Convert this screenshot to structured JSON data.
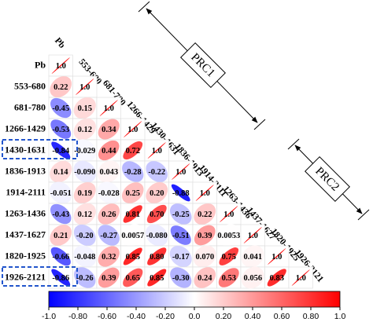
{
  "chart_data": {
    "type": "correlogram",
    "variables": [
      "Pb",
      "553-680",
      "681-780",
      "1266-1429",
      "1430-1631",
      "1836-1913",
      "1914-2111",
      "1263-1436",
      "1437-1627",
      "1820-1925",
      "1926-2121"
    ],
    "values": [
      [
        1
      ],
      [
        0.22,
        1
      ],
      [
        -0.45,
        0.15,
        1
      ],
      [
        -0.53,
        0.12,
        0.34,
        1
      ],
      [
        -0.84,
        -0.029,
        0.44,
        0.72,
        1
      ],
      [
        0.14,
        -0.09,
        0.043,
        -0.28,
        -0.22,
        1
      ],
      [
        -0.051,
        0.19,
        -0.028,
        0.25,
        0.2,
        -0.88,
        1
      ],
      [
        -0.43,
        0.12,
        0.26,
        0.81,
        0.7,
        -0.25,
        0.22,
        1
      ],
      [
        0.21,
        -0.2,
        -0.27,
        0.0057,
        -0.08,
        -0.51,
        0.39,
        0.0053,
        1
      ],
      [
        -0.66,
        -0.048,
        0.32,
        0.85,
        0.8,
        -0.17,
        0.07,
        0.75,
        0.041,
        1
      ],
      [
        -0.86,
        -0.26,
        0.39,
        0.65,
        0.85,
        -0.3,
        0.24,
        0.53,
        0.056,
        0.83,
        1
      ]
    ],
    "value_labels": [
      [
        "1.0"
      ],
      [
        "0.22",
        "1.0"
      ],
      [
        "-0.45",
        "0.15",
        "1.0"
      ],
      [
        "-0.53",
        "0.12",
        "0.34",
        "1.0"
      ],
      [
        "-0.84",
        "-0.029",
        "0.44",
        "0.72",
        "1.0"
      ],
      [
        "0.14",
        "-0.090",
        "0.043",
        "-0.28",
        "-0.22",
        "1.0"
      ],
      [
        "-0.051",
        "0.19",
        "-0.028",
        "0.25",
        "0.20",
        "-0.88",
        "1.0"
      ],
      [
        "-0.43",
        "0.12",
        "0.26",
        "0.81",
        "0.70",
        "-0.25",
        "0.22",
        "1.0"
      ],
      [
        "0.21",
        "-0.20",
        "-0.27",
        "0.0057",
        "-0.080",
        "-0.51",
        "0.39",
        "0.0053",
        "1.0"
      ],
      [
        "-0.66",
        "-0.048",
        "0.32",
        "0.85",
        "0.80",
        "-0.17",
        "0.070",
        "0.75",
        "0.041",
        "1.0"
      ],
      [
        "-0.86",
        "-0.26",
        "0.39",
        "0.65",
        "0.85",
        "-0.30",
        "0.24",
        "0.53",
        "0.056",
        "0.83",
        "1.0"
      ]
    ],
    "colors": [
      "#0000ff",
      "#ffffff",
      "#ff0000"
    ],
    "clim": [
      -1,
      1
    ],
    "cticks": [
      {
        "value": -1,
        "label": "-1.0"
      },
      {
        "value": -0.8,
        "label": "-0.80"
      },
      {
        "value": -0.6,
        "label": "-0.60"
      },
      {
        "value": -0.4,
        "label": "-0.40"
      },
      {
        "value": -0.2,
        "label": "-0.20"
      },
      {
        "value": 0,
        "label": "0.0"
      },
      {
        "value": 0.2,
        "label": "0.20"
      },
      {
        "value": 0.4,
        "label": "0.40"
      },
      {
        "value": 0.6,
        "label": "0.60"
      },
      {
        "value": 0.8,
        "label": "0.80"
      },
      {
        "value": 1,
        "label": "1.0"
      }
    ],
    "annotations": [
      "PRC1",
      "PRC2"
    ]
  }
}
